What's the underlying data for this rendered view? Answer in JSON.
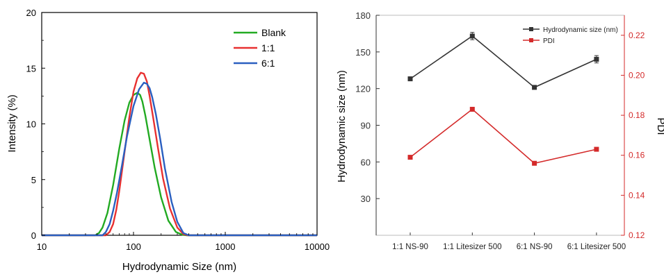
{
  "colors": {
    "blank": "#22aa22",
    "ratio_1_1": "#e83030",
    "ratio_6_1": "#2a5fc0",
    "size_series": "#333333",
    "pdi_series": "#d42a2a",
    "right_axis": "#d42a2a"
  },
  "chart_data": [
    {
      "type": "line",
      "title": "",
      "xlabel": "Hydrodynamic Size (nm)",
      "ylabel": "Intensity (%)",
      "xscale": "log",
      "xlim": [
        10,
        10000
      ],
      "ylim": [
        0,
        20
      ],
      "xticks": [
        "10",
        "100",
        "1000",
        "10000"
      ],
      "yticks": [
        "0",
        "5",
        "10",
        "15",
        "20"
      ],
      "grid": false,
      "legend_position": "top-right",
      "series": [
        {
          "name": "Blank",
          "x": [
            10,
            38,
            42,
            46,
            52,
            60,
            70,
            80,
            90,
            100,
            110,
            118,
            125,
            135,
            150,
            170,
            200,
            240,
            290,
            340,
            380,
            410,
            10000
          ],
          "y": [
            0,
            0,
            0.2,
            0.7,
            2.0,
            4.5,
            7.8,
            10.3,
            11.9,
            12.6,
            12.8,
            12.6,
            12.0,
            10.7,
            8.6,
            6.1,
            3.4,
            1.3,
            0.3,
            0.05,
            0,
            0,
            0
          ]
        },
        {
          "name": "1:1",
          "x": [
            10,
            50,
            55,
            60,
            65,
            70,
            80,
            90,
            100,
            110,
            120,
            130,
            140,
            150,
            165,
            185,
            210,
            250,
            300,
            350,
            390,
            430,
            10000
          ],
          "y": [
            0,
            0,
            0.3,
            1.0,
            2.3,
            4.0,
            7.5,
            10.6,
            12.9,
            14.1,
            14.6,
            14.5,
            13.8,
            12.5,
            10.4,
            7.8,
            5.1,
            2.4,
            0.7,
            0.1,
            0,
            0,
            0
          ]
        },
        {
          "name": "6:1",
          "x": [
            10,
            46,
            50,
            55,
            60,
            66,
            75,
            85,
            100,
            115,
            130,
            140,
            150,
            160,
            175,
            195,
            220,
            260,
            300,
            350,
            400,
            440,
            10000
          ],
          "y": [
            0,
            0,
            0.3,
            1.0,
            2.2,
            3.8,
            6.3,
            8.9,
            11.6,
            13.1,
            13.7,
            13.6,
            13.2,
            12.4,
            10.9,
            8.7,
            6.0,
            3.0,
            1.2,
            0.2,
            0,
            0,
            0
          ]
        }
      ]
    },
    {
      "type": "line",
      "title": "",
      "categories": [
        "1:1 NS-90",
        "1:1 Litesizer 500",
        "6:1 NS-90",
        "6:1 Litesizer 500"
      ],
      "ylabel": "Hydrodynamic size (nm)",
      "y2label": "PDI",
      "ylim": [
        0,
        180
      ],
      "y2lim": [
        0.12,
        0.23
      ],
      "yticks": [
        "30",
        "60",
        "90",
        "120",
        "150",
        "180"
      ],
      "y2ticks": [
        "0.12",
        "0.14",
        "0.16",
        "0.18",
        "0.20",
        "0.22"
      ],
      "grid": false,
      "legend_position": "top-right",
      "series": [
        {
          "name": "Hydrodynamic size (nm)",
          "axis": "left",
          "marker": "square",
          "values": [
            128,
            163,
            121,
            144
          ],
          "errors": [
            1.5,
            3,
            1.5,
            3
          ]
        },
        {
          "name": "PDI",
          "axis": "right",
          "marker": "square",
          "values": [
            0.159,
            0.183,
            0.156,
            0.163
          ]
        }
      ]
    }
  ]
}
